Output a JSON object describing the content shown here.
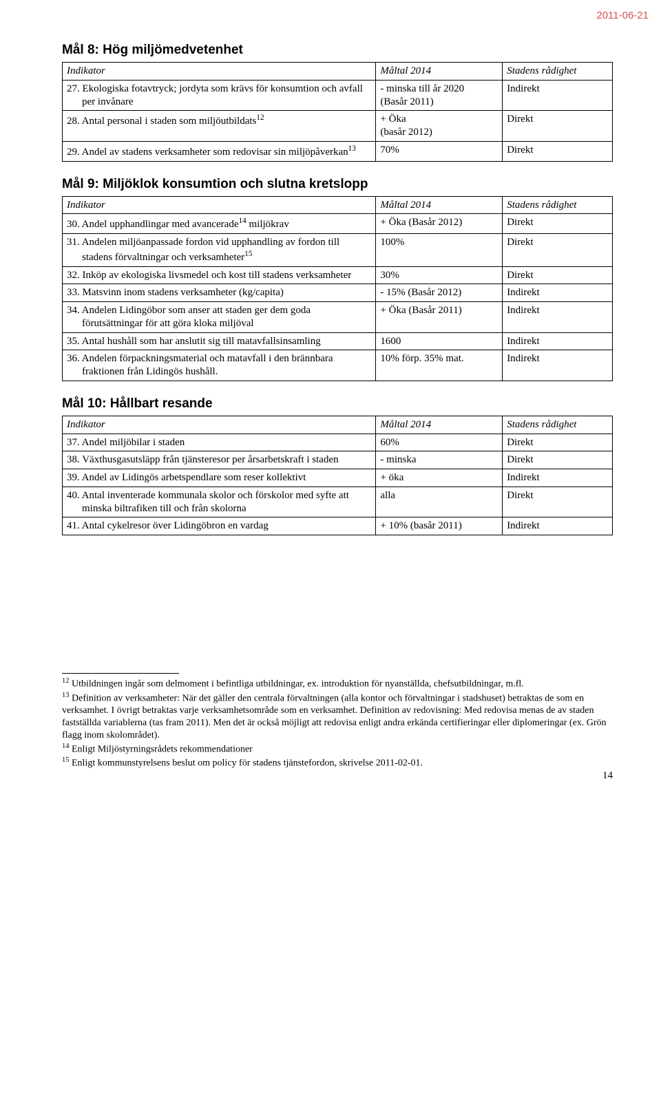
{
  "date_header": "2011-06-21",
  "page_number": "14",
  "headers": {
    "indikator": "Indikator",
    "maltal": "Måltal 2014",
    "radighet": "Stadens rådighet"
  },
  "goal8": {
    "title": "Mål 8: Hög miljömedvetenhet",
    "rows": [
      {
        "ind": "27. Ekologiska fotavtryck; jordyta som krävs för konsumtion och avfall per invånare",
        "mal": "-   minska till år 2020\n(Basår 2011)",
        "rad": "Indirekt"
      },
      {
        "ind_html": "28. Antal personal i staden som miljöutbildats<span class='sup'>12</span>",
        "mal": "+ Öka\n(basår 2012)",
        "rad": "Direkt"
      },
      {
        "ind_html": "29. Andel av stadens verksamheter som redovisar sin miljöpåverkan<span class='sup'>13</span>",
        "mal": "70%",
        "rad": "Direkt"
      }
    ]
  },
  "goal9": {
    "title": "Mål 9: Miljöklok konsumtion och slutna kretslopp",
    "rows": [
      {
        "ind_html": "30. Andel upphandlingar med avancerade<span class='sup'>14</span> miljökrav",
        "mal": "+ Öka (Basår 2012)",
        "rad": "Direkt"
      },
      {
        "ind_html": "31. Andelen miljöanpassade fordon vid upphandling av fordon till stadens förvaltningar och verksamheter<span class='sup'>15</span>",
        "mal": "100%",
        "rad": "Direkt"
      },
      {
        "ind": "32. Inköp av ekologiska livsmedel och kost till stadens verksamheter",
        "mal": "30%",
        "rad": "Direkt"
      },
      {
        "ind": "33. Matsvinn inom stadens verksamheter (kg/capita)",
        "mal": "- 15% (Basår 2012)",
        "rad": "Indirekt"
      },
      {
        "ind": "34. Andelen Lidingöbor som anser att staden ger dem goda förutsättningar för att göra kloka miljöval",
        "mal": "+ Öka (Basår 2011)",
        "rad": "Indirekt"
      },
      {
        "ind": "35. Antal hushåll som har anslutit sig till matavfallsinsamling",
        "mal": "1600",
        "rad": "Indirekt"
      },
      {
        "ind": "36. Andelen förpackningsmaterial och matavfall i den brännbara fraktionen från Lidingös hushåll.",
        "mal": "10% förp. 35% mat.",
        "rad": "Indirekt"
      }
    ]
  },
  "goal10": {
    "title": "Mål 10: Hållbart resande",
    "rows": [
      {
        "ind": "37. Andel miljöbilar i staden",
        "mal": "60%",
        "rad": "Direkt"
      },
      {
        "ind": "38. Växthusgasutsläpp från tjänsteresor per årsarbetskraft i staden",
        "mal": "- minska",
        "rad": "Direkt"
      },
      {
        "ind": "39. Andel av Lidingös arbetspendlare som reser kollektivt",
        "mal": "+ öka",
        "rad": "Indirekt"
      },
      {
        "ind": "40. Antal inventerade kommunala skolor och förskolor med syfte att minska biltrafiken till och från skolorna",
        "mal": "alla",
        "rad": "Direkt"
      },
      {
        "ind": "41. Antal cykelresor över Lidingöbron en vardag",
        "mal": "+ 10% (basår 2011)",
        "rad": "Indirekt"
      }
    ]
  },
  "footnotes": {
    "f12": "Utbildningen ingår som delmoment i befintliga utbildningar, ex. introduktion för nyanställda, chefsutbildningar, m.fl.",
    "f13": "Definition av verksamheter: När det gäller den centrala förvaltningen (alla kontor och förvaltningar i stadshuset) betraktas de som en verksamhet.  I övrigt betraktas varje verksamhetsområde som en verksamhet. Definition av redovisning: Med redovisa menas de av staden fastställda variablerna (tas fram 2011). Men det är också möjligt att redovisa enligt andra erkända certifieringar eller diplomeringar (ex. Grön flagg inom skolområdet).",
    "f14": "Enligt Miljöstyrningsrådets rekommendationer",
    "f15": "Enligt kommunstyrelsens beslut om policy för stadens tjänstefordon, skrivelse 2011-02-01."
  }
}
